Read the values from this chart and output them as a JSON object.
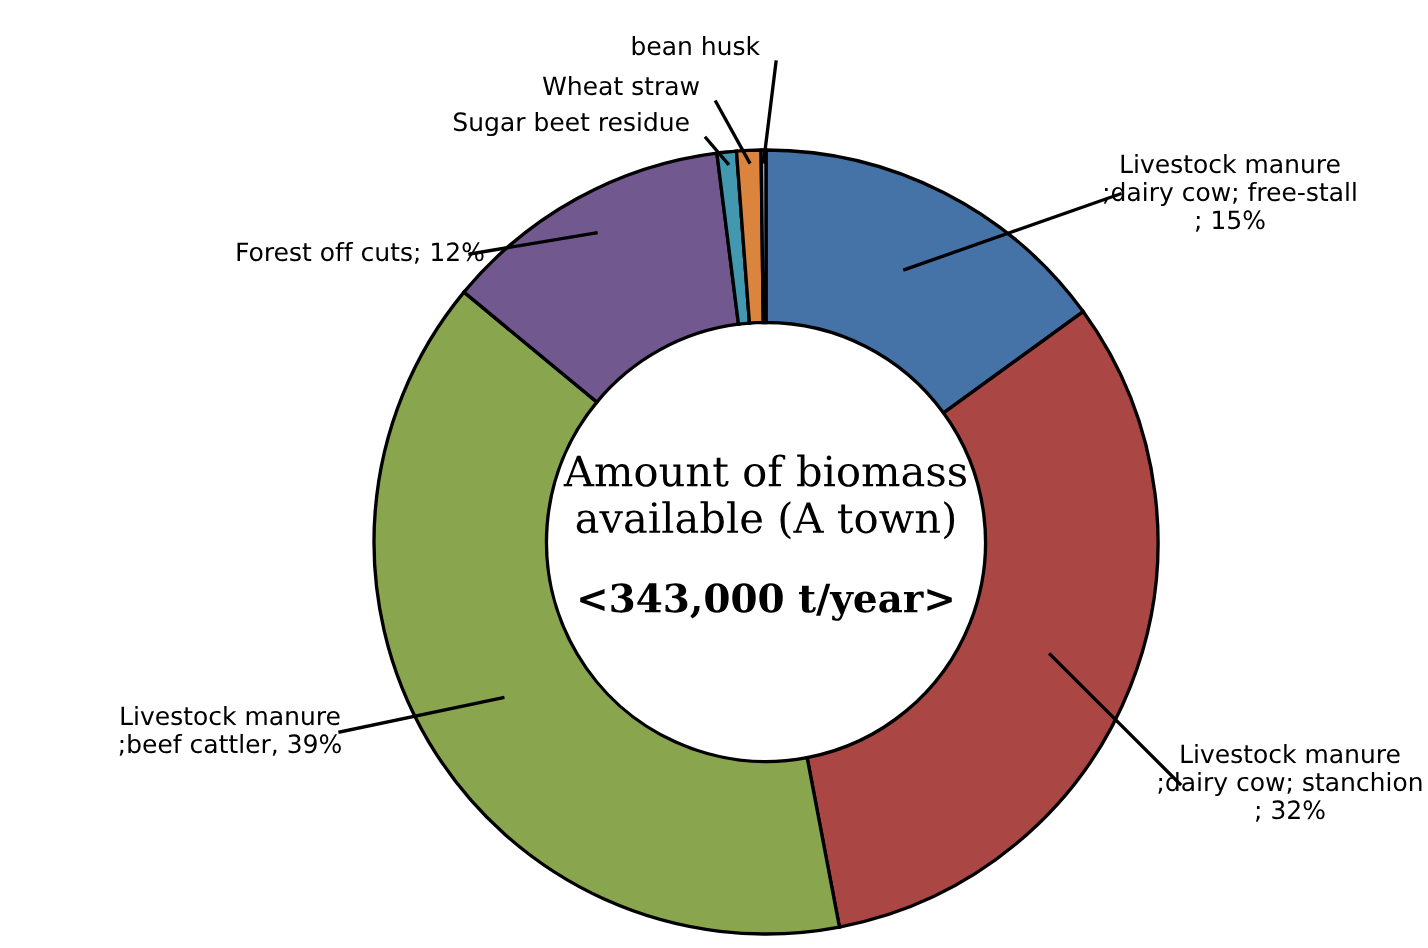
{
  "chart_data": {
    "type": "donut",
    "title": "Amount of biomass\navailable (A town)",
    "subtitle": "<343,000 t/year>",
    "categories": [
      "Livestock manure\n;dairy cow; free-stall",
      "Livestock manure\n;dairy cow; stanchion",
      "Livestock manure\n;beef cattler",
      "Forest off cuts",
      "Sugar beet residue",
      "Wheat straw",
      "bean husk"
    ],
    "values": [
      15,
      32,
      39,
      12,
      0.8,
      1.0,
      0.2
    ],
    "value_labels": [
      "; 15%",
      "; 32%",
      ", 39%",
      "; 12%",
      null,
      null,
      null
    ],
    "colors": [
      "#4572a7",
      "#aa4643",
      "#89a54e",
      "#71588f",
      "#4198af",
      "#db843d",
      "#93a9cf"
    ],
    "legend": false
  }
}
